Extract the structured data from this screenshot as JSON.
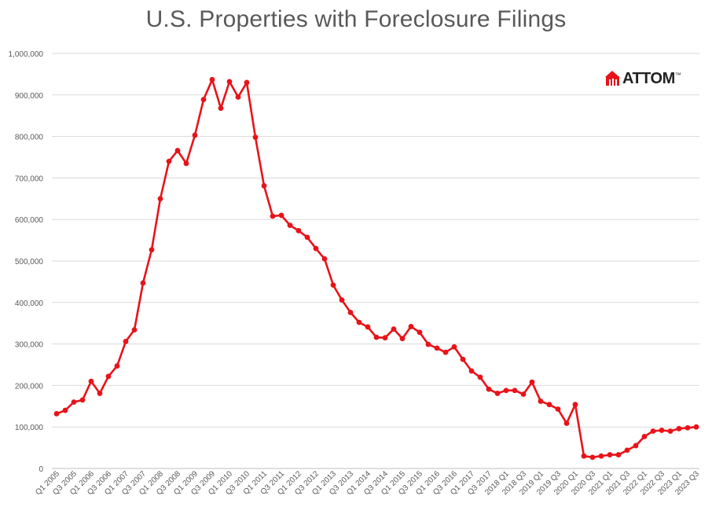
{
  "chart_data": {
    "type": "line",
    "title": "U.S. Properties with Foreclosure Filings",
    "xlabel": "",
    "ylabel": "",
    "ylim": [
      0,
      1000000
    ],
    "yticks": [
      "0",
      "100,000",
      "200,000",
      "300,000",
      "400,000",
      "500,000",
      "600,000",
      "700,000",
      "800,000",
      "900,000",
      "1,000,000"
    ],
    "ytick_values": [
      0,
      100000,
      200000,
      300000,
      400000,
      500000,
      600000,
      700000,
      800000,
      900000,
      1000000
    ],
    "grid": "horizontal",
    "legend": "none",
    "line_color": "#e8131a",
    "x_tick_labels": [
      "Q1 2005",
      "Q3 2005",
      "Q1 2006",
      "Q3 2006",
      "Q1 2007",
      "Q3 2007",
      "Q1 2008",
      "Q3 2008",
      "Q1 2009",
      "Q3 2009",
      "Q1 2010",
      "Q3 2010",
      "Q1 2011",
      "Q3 2011",
      "Q1 2012",
      "Q3 2012",
      "Q1 2013",
      "Q3 2013",
      "Q1 2014",
      "Q3 2014",
      "Q1 2015",
      "Q3 2015",
      "Q1 2016",
      "Q3 2016",
      "Q1 2017",
      "Q3 2017",
      "2018 Q1",
      "2018 Q3",
      "2019 Q1",
      "2019 Q3",
      "2020 Q1",
      "2020 Q3",
      "2021 Q1",
      "2021 Q3",
      "2022 Q1",
      "2022 Q3",
      "2023 Q1",
      "2023 Q3"
    ],
    "x": [
      "Q1 2005",
      "Q2 2005",
      "Q3 2005",
      "Q4 2005",
      "Q1 2006",
      "Q2 2006",
      "Q3 2006",
      "Q4 2006",
      "Q1 2007",
      "Q2 2007",
      "Q3 2007",
      "Q4 2007",
      "Q1 2008",
      "Q2 2008",
      "Q3 2008",
      "Q4 2008",
      "Q1 2009",
      "Q2 2009",
      "Q3 2009",
      "Q4 2009",
      "Q1 2010",
      "Q2 2010",
      "Q3 2010",
      "Q4 2010",
      "Q1 2011",
      "Q2 2011",
      "Q3 2011",
      "Q4 2011",
      "Q1 2012",
      "Q2 2012",
      "Q3 2012",
      "Q4 2012",
      "Q1 2013",
      "Q2 2013",
      "Q3 2013",
      "Q4 2013",
      "Q1 2014",
      "Q2 2014",
      "Q3 2014",
      "Q4 2014",
      "Q1 2015",
      "Q2 2015",
      "Q3 2015",
      "Q4 2015",
      "Q1 2016",
      "Q2 2016",
      "Q3 2016",
      "Q4 2016",
      "Q1 2017",
      "Q2 2017",
      "Q3 2017",
      "Q4 2017",
      "2018 Q1",
      "2018 Q2",
      "2018 Q3",
      "2018 Q4",
      "2019 Q1",
      "2019 Q2",
      "2019 Q3",
      "2019 Q4",
      "2020 Q1",
      "2020 Q2",
      "2020 Q3",
      "2020 Q4",
      "2021 Q1",
      "2021 Q2",
      "2021 Q3",
      "2021 Q4",
      "2022 Q1",
      "2022 Q2",
      "2022 Q3",
      "2022 Q4",
      "2023 Q1",
      "2023 Q2",
      "2023 Q3"
    ],
    "values": [
      132000,
      140000,
      160000,
      165000,
      210000,
      181000,
      222000,
      247000,
      306000,
      334000,
      447000,
      527000,
      650000,
      740000,
      766000,
      735000,
      803000,
      889000,
      937000,
      868000,
      932000,
      895000,
      930000,
      798000,
      681000,
      608000,
      610000,
      586000,
      573000,
      557000,
      530000,
      505000,
      442000,
      406000,
      376000,
      352000,
      341000,
      316000,
      315000,
      336000,
      313000,
      342000,
      328000,
      299000,
      290000,
      280000,
      293000,
      263000,
      235000,
      220000,
      191000,
      181000,
      188000,
      188000,
      179000,
      208000,
      162000,
      154000,
      143000,
      109000,
      154000,
      30000,
      27000,
      30000,
      33000,
      33000,
      44000,
      55000,
      77000,
      90000,
      92000,
      90000,
      96000,
      98000,
      100000
    ]
  },
  "logo": {
    "text": "ATTOM",
    "mark": "™",
    "icon": "house-roof-icon",
    "icon_color": "#e8131a"
  }
}
